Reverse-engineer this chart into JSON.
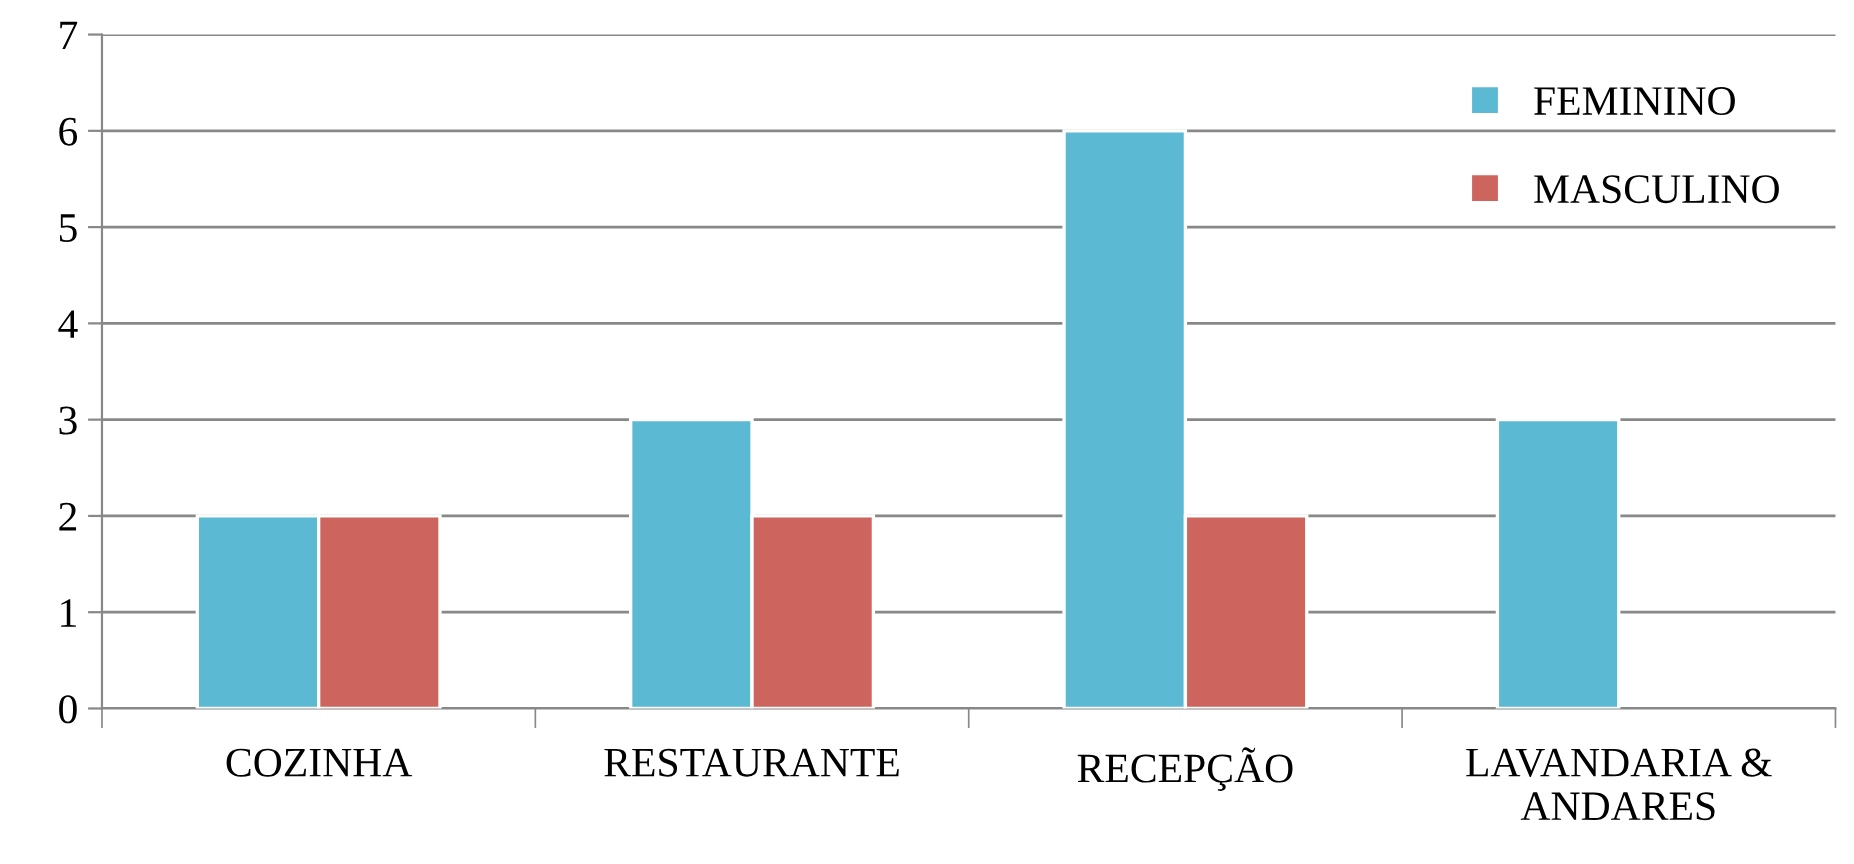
{
  "chart_data": {
    "type": "bar",
    "categories": [
      "COZINHA",
      "RESTAURANTE",
      "RECEPÇÃO",
      "LAVANDARIA &\nANDARES"
    ],
    "series": [
      {
        "name": "FEMININO",
        "color": "#5bb9d3",
        "values": [
          2,
          3,
          6,
          3
        ]
      },
      {
        "name": "MASCULINO",
        "color": "#cd645d",
        "values": [
          2,
          2,
          2,
          null
        ]
      }
    ],
    "ylim": [
      0,
      7
    ],
    "yticks": [
      0,
      1,
      2,
      3,
      4,
      5,
      6,
      7
    ],
    "grid": "y",
    "legend": "top right"
  }
}
